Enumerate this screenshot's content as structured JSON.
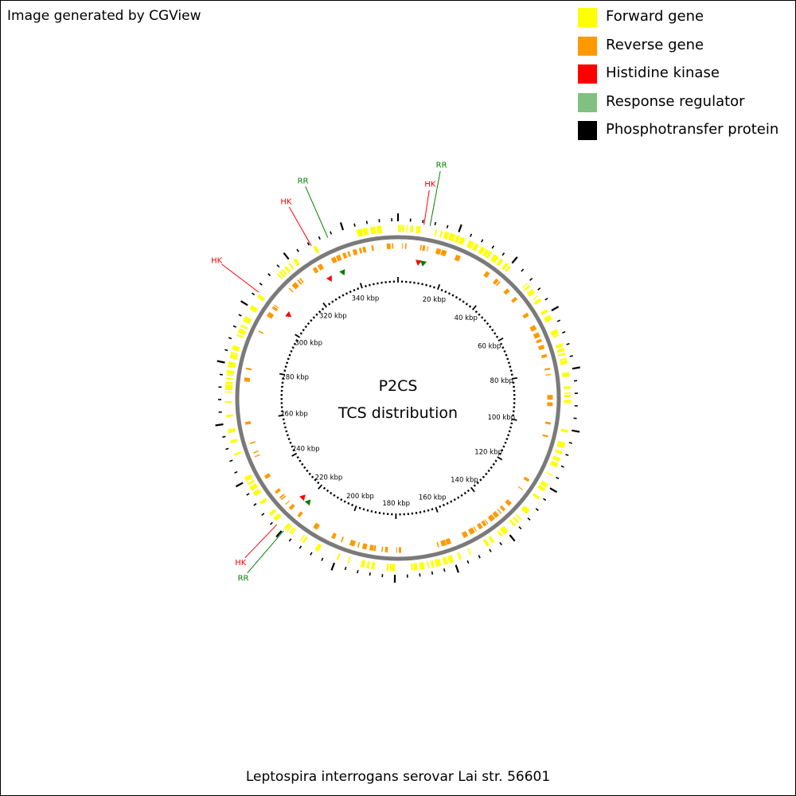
{
  "credit": "Image generated by CGView",
  "legend": [
    {
      "label": "Forward gene",
      "color": "#ffff00",
      "icon": "yellow-square"
    },
    {
      "label": "Reverse gene",
      "color": "#ff9900",
      "icon": "orange-square"
    },
    {
      "label": "Histidine kinase",
      "color": "#ff0000",
      "icon": "red-square"
    },
    {
      "label": "Response regulator",
      "color": "#80c080",
      "icon": "green-square"
    },
    {
      "label": "Phosphotransfer protein",
      "color": "#000000",
      "icon": "black-square"
    }
  ],
  "center": {
    "line1": "P2CS",
    "line2": "TCS distribution"
  },
  "footer": "Leptospira interrogans serovar Lai str. 56601",
  "map": {
    "sequence_length_kbp": 358,
    "ruler_labels": [
      "20 kbp",
      "40 kbp",
      "60 kbp",
      "80 kbp",
      "100 kbp",
      "120 kbp",
      "140 kbp",
      "160 kbp",
      "180 kbp",
      "200 kbp",
      "220 kbp",
      "240 kbp",
      "260 kbp",
      "280 kbp",
      "300 kbp",
      "320 kbp",
      "340 kbp"
    ],
    "ruler_values_kbp": [
      20,
      40,
      60,
      80,
      100,
      120,
      140,
      160,
      180,
      200,
      220,
      240,
      260,
      280,
      300,
      320,
      340
    ],
    "features": [
      {
        "type": "HK",
        "label": "HK",
        "color": "#ff0000",
        "position_kbp": 8.5
      },
      {
        "type": "RR",
        "label": "RR",
        "color": "#008000",
        "position_kbp": 10.5
      },
      {
        "type": "RR",
        "label": "RR",
        "color": "#008000",
        "position_kbp": 334.5
      },
      {
        "type": "HK",
        "label": "HK",
        "color": "#ff0000",
        "position_kbp": 328.5
      },
      {
        "type": "HK",
        "label": "HK",
        "color": "#ff0000",
        "position_kbp": 305.5
      },
      {
        "type": "HK",
        "label": "HK",
        "color": "#ff0000",
        "position_kbp": 222.5
      },
      {
        "type": "RR",
        "label": "RR",
        "color": "#008000",
        "position_kbp": 219.5
      }
    ],
    "colors": {
      "forward": "#ffff00",
      "reverse": "#ff9900",
      "backbone": "#7a7a7a",
      "hk": "#ff0000",
      "rr": "#008000"
    }
  }
}
